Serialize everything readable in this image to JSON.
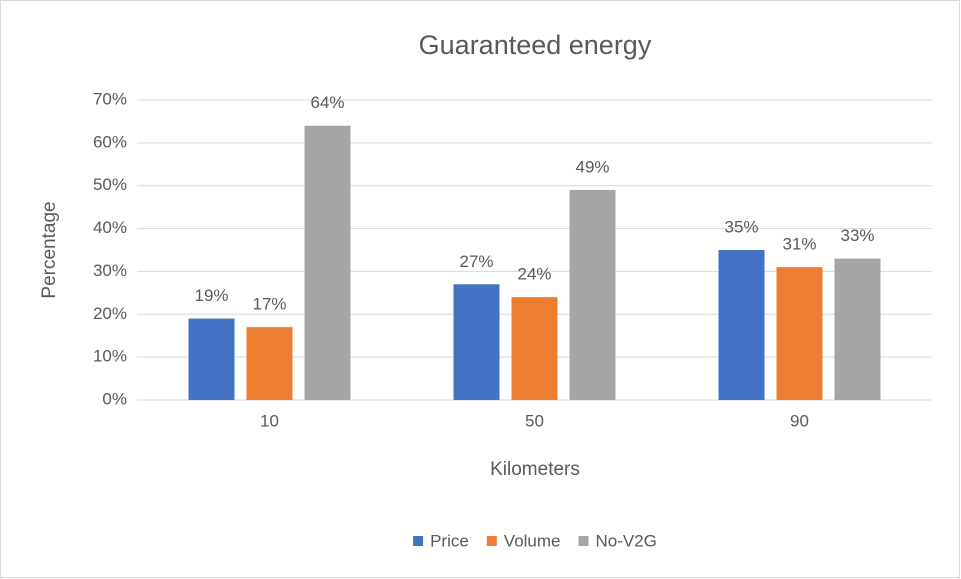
{
  "chart_data": {
    "type": "bar",
    "title": "Guaranteed energy",
    "x_label": "Kilometers",
    "y_label": "Percentage",
    "categories": [
      "10",
      "50",
      "90"
    ],
    "series": [
      {
        "name": "Price",
        "color": "#4472c4",
        "values": [
          19,
          27,
          35
        ],
        "value_labels": [
          "19%",
          "27%",
          "35%"
        ]
      },
      {
        "name": "Volume",
        "color": "#ed7d31",
        "values": [
          17,
          24,
          31
        ],
        "value_labels": [
          "17%",
          "24%",
          "31%"
        ]
      },
      {
        "name": "No-V2G",
        "color": "#a5a5a5",
        "values": [
          64,
          49,
          33
        ],
        "value_labels": [
          "64%",
          "49%",
          "33%"
        ]
      }
    ],
    "ylim": [
      0,
      70
    ],
    "yticks": [
      {
        "value": 0,
        "label": "0%"
      },
      {
        "value": 10,
        "label": "10%"
      },
      {
        "value": 20,
        "label": "20%"
      },
      {
        "value": 30,
        "label": "30%"
      },
      {
        "value": 40,
        "label": "40%"
      },
      {
        "value": 50,
        "label": "50%"
      },
      {
        "value": 60,
        "label": "60%"
      },
      {
        "value": 70,
        "label": "70%"
      }
    ],
    "grid": true,
    "legend": "bottom"
  }
}
